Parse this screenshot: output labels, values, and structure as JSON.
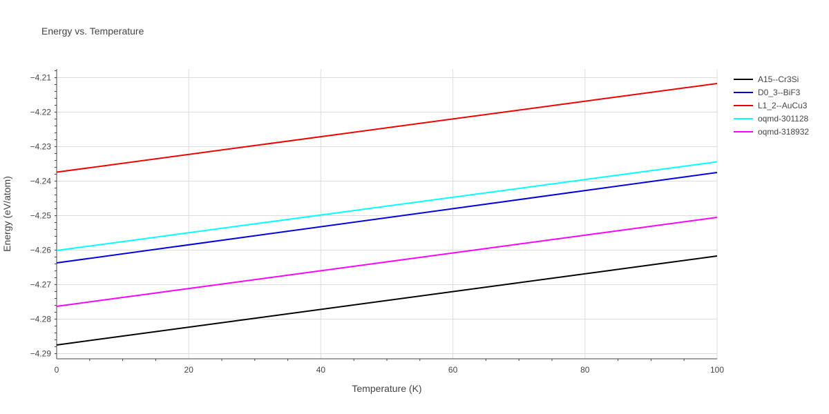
{
  "chart_data": {
    "type": "line",
    "title": "Energy vs. Temperature",
    "xlabel": "Temperature (K)",
    "ylabel": "Energy (eV/atom)",
    "xlim": [
      0,
      100
    ],
    "ylim": [
      -4.2915,
      -4.2075
    ],
    "x_ticks": [
      0,
      20,
      40,
      60,
      80,
      100
    ],
    "y_ticks": [
      -4.29,
      -4.28,
      -4.27,
      -4.26,
      -4.25,
      -4.24,
      -4.23,
      -4.22,
      -4.21
    ],
    "y_tick_labels": [
      "−4.29",
      "−4.28",
      "−4.27",
      "−4.26",
      "−4.25",
      "−4.24",
      "−4.23",
      "−4.22",
      "−4.21"
    ],
    "grid": true,
    "legend_position": "top-right",
    "series": [
      {
        "name": "A15--Cr3Si",
        "color": "#000000",
        "x": [
          0,
          100
        ],
        "y": [
          -4.2875,
          -4.2617
        ]
      },
      {
        "name": "D0_3--BiF3",
        "color": "#0000dd",
        "x": [
          0,
          100
        ],
        "y": [
          -4.2637,
          -4.2375
        ]
      },
      {
        "name": "L1_2--AuCu3",
        "color": "#ee0000",
        "x": [
          0,
          100
        ],
        "y": [
          -4.2374,
          -4.2117
        ]
      },
      {
        "name": "oqmd-301128",
        "color": "#00ffff",
        "x": [
          0,
          100
        ],
        "y": [
          -4.2601,
          -4.2344
        ]
      },
      {
        "name": "oqmd-318932",
        "color": "#ff00ff",
        "x": [
          0,
          100
        ],
        "y": [
          -4.2763,
          -4.2505
        ]
      }
    ]
  }
}
